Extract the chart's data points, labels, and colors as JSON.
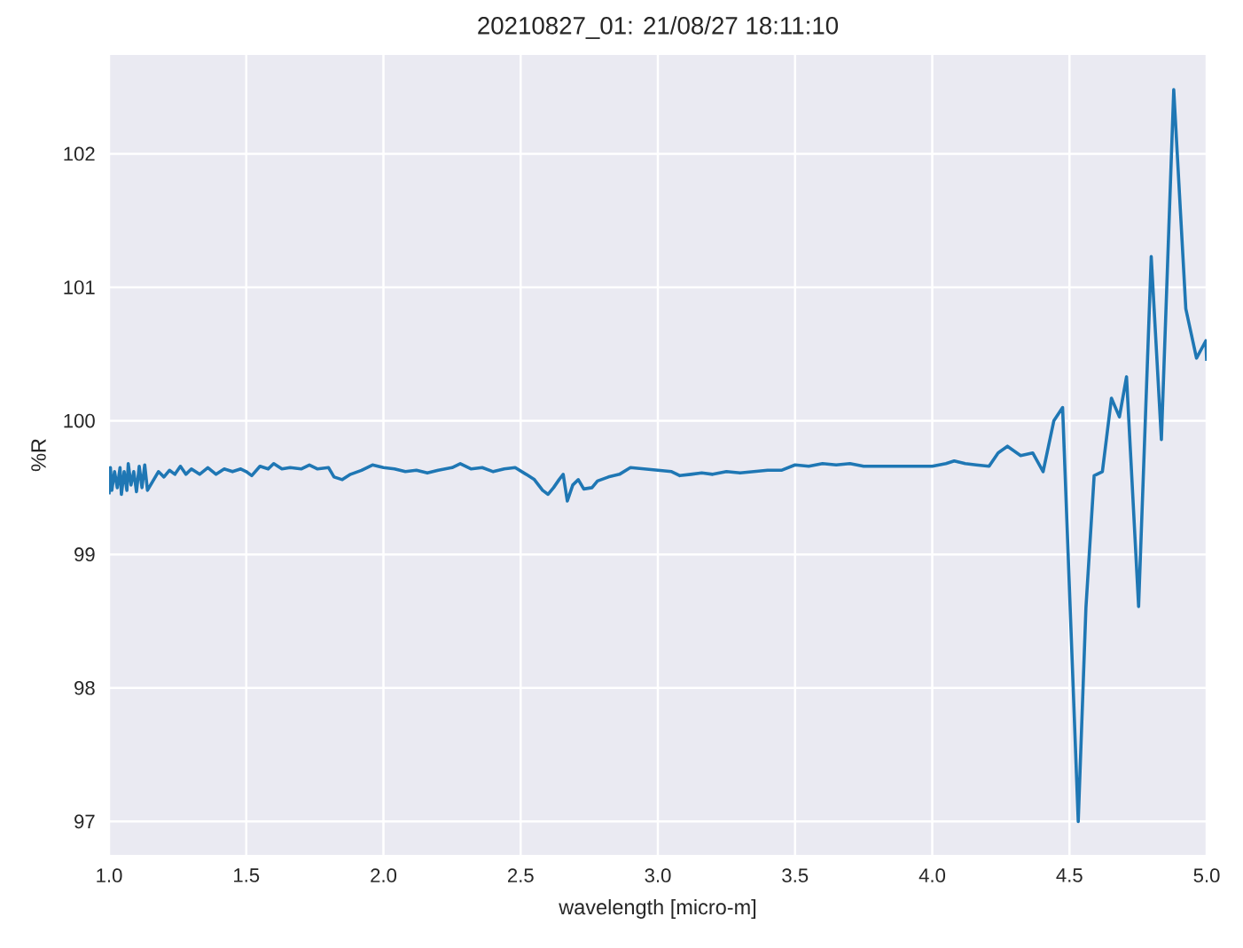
{
  "chart_data": {
    "type": "line",
    "title": "20210827_01:  21/08/27 18:11:10",
    "xlabel": "wavelength [micro-m]",
    "ylabel": "%R",
    "xlim": [
      1.0,
      5.0
    ],
    "ylim": [
      96.75,
      102.74
    ],
    "xticks": [
      {
        "value": 1.0,
        "label": "1.0"
      },
      {
        "value": 1.5,
        "label": "1.5"
      },
      {
        "value": 2.0,
        "label": "2.0"
      },
      {
        "value": 2.5,
        "label": "2.5"
      },
      {
        "value": 3.0,
        "label": "3.0"
      },
      {
        "value": 3.5,
        "label": "3.5"
      },
      {
        "value": 4.0,
        "label": "4.0"
      },
      {
        "value": 4.5,
        "label": "4.5"
      },
      {
        "value": 5.0,
        "label": "5.0"
      }
    ],
    "yticks": [
      97,
      98,
      99,
      100,
      101,
      102
    ],
    "grid": true,
    "legend": false,
    "marker": "none",
    "line_style": "solid",
    "series": [
      {
        "color": "#1f77b4",
        "x": [
          1.0,
          1.005,
          1.01,
          1.02,
          1.03,
          1.04,
          1.045,
          1.055,
          1.065,
          1.07,
          1.08,
          1.09,
          1.1,
          1.11,
          1.12,
          1.13,
          1.14,
          1.16,
          1.18,
          1.2,
          1.22,
          1.24,
          1.26,
          1.28,
          1.3,
          1.33,
          1.36,
          1.39,
          1.42,
          1.45,
          1.48,
          1.5,
          1.52,
          1.55,
          1.58,
          1.6,
          1.63,
          1.66,
          1.7,
          1.73,
          1.76,
          1.8,
          1.82,
          1.85,
          1.88,
          1.92,
          1.96,
          2.0,
          2.04,
          2.08,
          2.12,
          2.16,
          2.2,
          2.25,
          2.28,
          2.32,
          2.36,
          2.4,
          2.44,
          2.48,
          2.52,
          2.55,
          2.58,
          2.6,
          2.62,
          2.64,
          2.655,
          2.67,
          2.69,
          2.71,
          2.73,
          2.76,
          2.78,
          2.82,
          2.86,
          2.9,
          2.95,
          3.0,
          3.05,
          3.08,
          3.12,
          3.16,
          3.2,
          3.25,
          3.3,
          3.35,
          3.4,
          3.45,
          3.5,
          3.55,
          3.6,
          3.65,
          3.7,
          3.75,
          3.8,
          3.85,
          3.9,
          3.95,
          4.0,
          4.05,
          4.08,
          4.12,
          4.16,
          4.207,
          4.24,
          4.274,
          4.322,
          4.366,
          4.404,
          4.443,
          4.475,
          4.532,
          4.56,
          4.59,
          4.62,
          4.653,
          4.682,
          4.708,
          4.752,
          4.798,
          4.835,
          4.88,
          4.924,
          4.963,
          4.997,
          5.0
        ],
        "values": [
          99.45,
          99.65,
          99.48,
          99.62,
          99.5,
          99.65,
          99.45,
          99.62,
          99.48,
          99.68,
          99.52,
          99.62,
          99.47,
          99.66,
          99.5,
          99.67,
          99.48,
          99.55,
          99.62,
          99.58,
          99.63,
          99.6,
          99.66,
          99.6,
          99.64,
          99.6,
          99.65,
          99.6,
          99.64,
          99.62,
          99.64,
          99.62,
          99.59,
          99.66,
          99.64,
          99.68,
          99.64,
          99.65,
          99.64,
          99.67,
          99.64,
          99.65,
          99.58,
          99.56,
          99.6,
          99.63,
          99.67,
          99.65,
          99.64,
          99.62,
          99.63,
          99.61,
          99.63,
          99.65,
          99.68,
          99.64,
          99.65,
          99.62,
          99.64,
          99.65,
          99.6,
          99.56,
          99.48,
          99.45,
          99.5,
          99.56,
          99.6,
          99.4,
          99.52,
          99.56,
          99.49,
          99.5,
          99.55,
          99.58,
          99.6,
          99.65,
          99.64,
          99.63,
          99.62,
          99.59,
          99.6,
          99.61,
          99.6,
          99.62,
          99.61,
          99.62,
          99.63,
          99.63,
          99.67,
          99.66,
          99.68,
          99.67,
          99.68,
          99.66,
          99.66,
          99.66,
          99.66,
          99.66,
          99.66,
          99.68,
          99.7,
          99.68,
          99.67,
          99.66,
          99.76,
          99.81,
          99.74,
          99.76,
          99.62,
          100.0,
          100.1,
          97.0,
          98.6,
          99.59,
          99.62,
          100.17,
          100.03,
          100.33,
          98.61,
          101.23,
          99.86,
          102.48,
          100.84,
          100.47,
          100.6,
          100.45
        ]
      }
    ]
  }
}
